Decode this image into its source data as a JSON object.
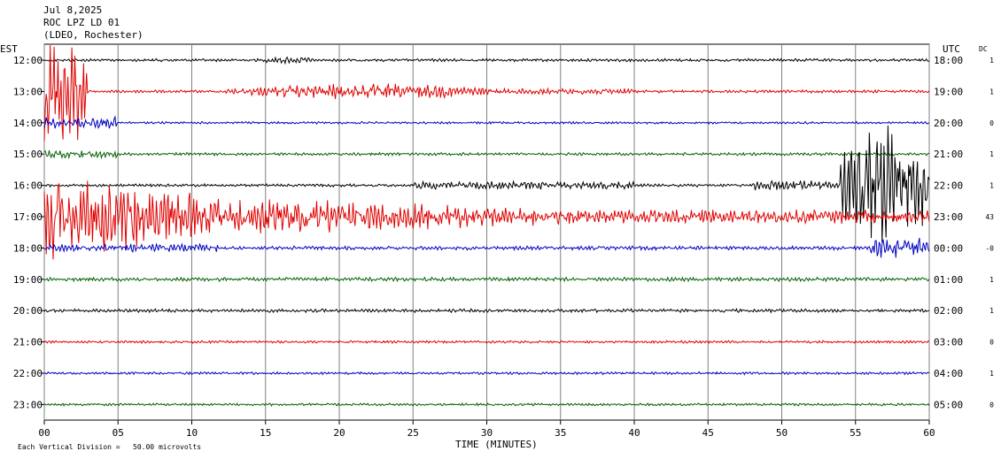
{
  "header": {
    "date": "Jul 8,2025",
    "station": "ROC LPZ LD 01",
    "network": "(LDEO, Rochester)"
  },
  "left_zone_label": "EST",
  "right_zone_label": "UTC",
  "dc_label": "DC",
  "xlabel": "TIME (MINUTES)",
  "footnote": "Each Vertical Division =   50.00 microvolts",
  "chart_data": {
    "type": "line",
    "title": "",
    "xlabel": "TIME (MINUTES)",
    "ylabel": "",
    "xlim": [
      0,
      60
    ],
    "x_ticks": [
      "00",
      "05",
      "10",
      "15",
      "20",
      "25",
      "30",
      "35",
      "40",
      "45",
      "50",
      "55",
      "60"
    ],
    "grid": true,
    "rows": [
      {
        "est": "12:00",
        "utc": "18:00",
        "dc": "1",
        "color": "#000000"
      },
      {
        "est": "13:00",
        "utc": "19:00",
        "dc": "1",
        "color": "#e00000"
      },
      {
        "est": "14:00",
        "utc": "20:00",
        "dc": "0",
        "color": "#0000c0"
      },
      {
        "est": "15:00",
        "utc": "21:00",
        "dc": "1",
        "color": "#006000"
      },
      {
        "est": "16:00",
        "utc": "22:00",
        "dc": "1",
        "color": "#000000"
      },
      {
        "est": "17:00",
        "utc": "23:00",
        "dc": "43",
        "color": "#e00000"
      },
      {
        "est": "18:00",
        "utc": "00:00",
        "dc": "-0",
        "color": "#0000c0"
      },
      {
        "est": "19:00",
        "utc": "01:00",
        "dc": "1",
        "color": "#006000"
      },
      {
        "est": "20:00",
        "utc": "02:00",
        "dc": "1",
        "color": "#000000"
      },
      {
        "est": "21:00",
        "utc": "03:00",
        "dc": "0",
        "color": "#e00000"
      },
      {
        "est": "22:00",
        "utc": "04:00",
        "dc": "1",
        "color": "#0000c0"
      },
      {
        "est": "23:00",
        "utc": "05:00",
        "dc": "0",
        "color": "#006000"
      }
    ]
  }
}
